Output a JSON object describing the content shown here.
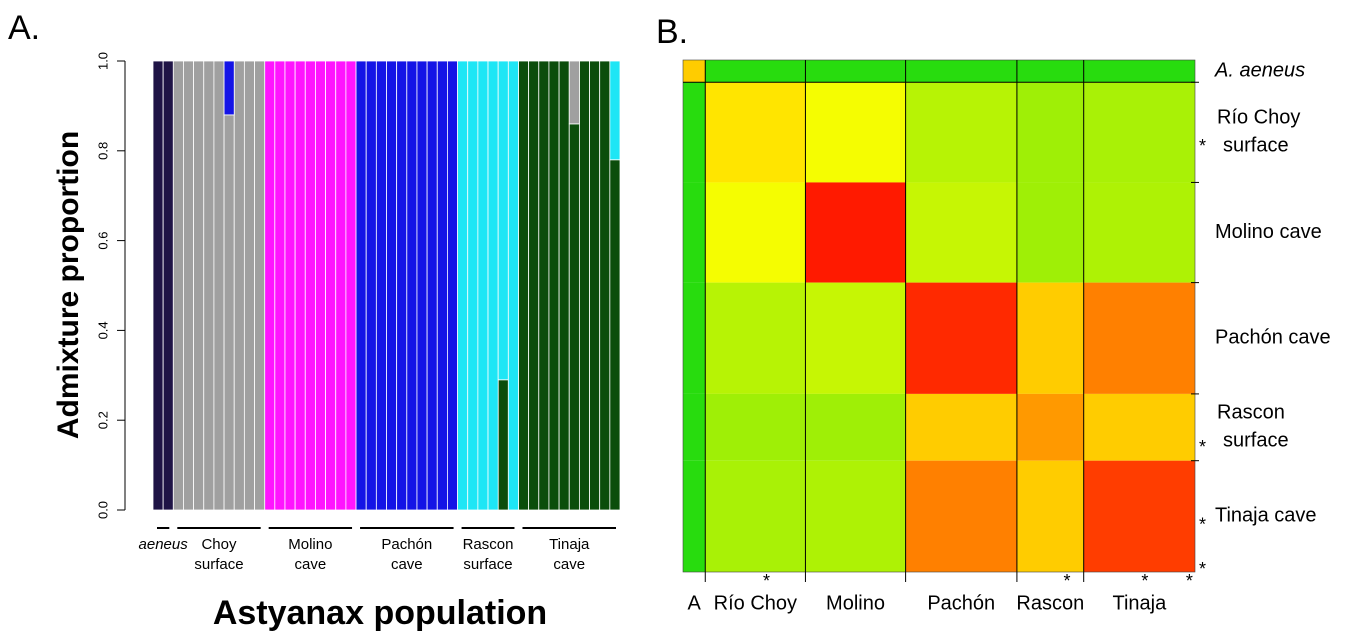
{
  "chart_data": [
    {
      "type": "bar",
      "stacked": true,
      "panel": "A.",
      "ylabel": "Admixture proportion",
      "xlabel": "Astyanax population",
      "categories": [
        null,
        null,
        null,
        null,
        null,
        null,
        null,
        null,
        null,
        null,
        null,
        null,
        null,
        null,
        null,
        null,
        null,
        null,
        null,
        null,
        null,
        null,
        null,
        null,
        null,
        null,
        null,
        null,
        null,
        null,
        null,
        null,
        null,
        null,
        null,
        null,
        null,
        null,
        null,
        null,
        null,
        null,
        null,
        null,
        null,
        null
      ],
      "groups": [
        {
          "label": "aeneus",
          "size": 2
        },
        {
          "label": "Choy surface",
          "size": 9
        },
        {
          "label": "Molino cave",
          "size": 9
        },
        {
          "label": "Pachón cave",
          "size": 10
        },
        {
          "label": "Rascon surface",
          "size": 6
        },
        {
          "label": "Tinaja cave",
          "size": 10
        }
      ],
      "ylim": [
        0,
        1
      ],
      "yticks": [
        {
          "value": 0,
          "label": "0.0"
        },
        0.2,
        0.4,
        0.6,
        0.8,
        {
          "value": 1,
          "label": "1.0"
        }
      ],
      "series": [
        {
          "color": "#1f1446",
          "values": [
            1,
            1,
            0,
            0,
            0,
            0,
            0,
            0,
            0,
            0,
            0,
            0,
            0,
            0,
            0,
            0,
            0,
            0,
            0,
            0,
            0,
            0,
            0,
            0,
            0,
            0,
            0,
            0,
            0,
            0,
            0,
            0,
            0,
            0,
            0,
            0,
            0,
            0,
            0,
            0,
            0,
            0,
            0,
            0,
            0,
            0
          ]
        },
        {
          "color": "#ff14ff",
          "values": [
            0,
            0,
            0,
            0,
            0,
            0,
            0,
            0,
            0,
            0,
            0,
            1,
            1,
            1,
            1,
            1,
            1,
            1,
            1,
            1,
            0,
            0,
            0,
            0,
            0,
            0,
            0,
            0,
            0,
            0,
            0,
            0,
            0,
            0,
            0,
            0,
            0,
            0,
            0,
            0,
            0,
            0,
            0,
            0,
            0,
            0
          ]
        },
        {
          "color": "#0b4d0b",
          "values": [
            0,
            0,
            0,
            0,
            0,
            0,
            0,
            0,
            0,
            0,
            0,
            0,
            0,
            0,
            0,
            0,
            0,
            0,
            0,
            0,
            0,
            0,
            0,
            0,
            0,
            0,
            0,
            0,
            0,
            0,
            0,
            0,
            0,
            0,
            0.29,
            0,
            1,
            1,
            1,
            1,
            1,
            0.86,
            1,
            1,
            1,
            0.78
          ]
        },
        {
          "color": "#a0a0a0",
          "values": [
            0,
            0,
            1,
            1,
            1,
            1,
            1,
            0.88,
            1,
            1,
            1,
            0,
            0,
            0,
            0,
            0,
            0,
            0,
            0,
            0,
            0,
            0,
            0,
            0,
            0,
            0,
            0,
            0,
            0,
            0,
            0,
            0,
            0,
            0,
            0,
            0,
            0,
            0,
            0,
            0,
            0,
            0.14,
            0,
            0,
            0,
            0
          ]
        },
        {
          "color": "#1414e6",
          "values": [
            0,
            0,
            0,
            0,
            0,
            0,
            0,
            0.12,
            0,
            0,
            0,
            0,
            0,
            0,
            0,
            0,
            0,
            0,
            0,
            0,
            1,
            1,
            1,
            1,
            1,
            1,
            1,
            1,
            1,
            1,
            0,
            0,
            0,
            0,
            0,
            0,
            0,
            0,
            0,
            0,
            0,
            0,
            0,
            0,
            0,
            0
          ]
        },
        {
          "color": "#1ee6f5",
          "values": [
            0,
            0,
            0,
            0,
            0,
            0,
            0,
            0,
            0,
            0,
            0,
            0,
            0,
            0,
            0,
            0,
            0,
            0,
            0,
            0,
            0,
            0,
            0,
            0,
            0,
            0,
            0,
            0,
            0,
            0,
            1,
            1,
            1,
            1,
            0.71,
            1,
            0,
            0,
            0,
            0,
            0,
            0,
            0,
            0,
            0,
            0.22
          ]
        }
      ]
    },
    {
      "type": "heatmap",
      "panel": "B.",
      "group_sizes": [
        2,
        9,
        9,
        10,
        6,
        10
      ],
      "col_labels": [
        "A",
        "Río Choy",
        "Molino",
        "Pachón",
        "Rascon",
        "Tinaja"
      ],
      "row_labels": [
        [
          "A. aeneus"
        ],
        [
          "Río Choy",
          "surface"
        ],
        [
          "Molino cave"
        ],
        [
          "Pachón cave"
        ],
        [
          "Rascon",
          "surface"
        ],
        [
          "Tinaja cave"
        ]
      ],
      "star": "*",
      "starred": [
        7,
        34,
        41,
        45
      ],
      "colors": [
        "#10d810",
        "#ffff00",
        "#ff0000"
      ],
      "values": [
        [
          0.6,
          0.05,
          0.05,
          0.05,
          0.05,
          0.05
        ],
        [
          0.05,
          0.55,
          0.48,
          0.35,
          0.3,
          0.32
        ],
        [
          0.05,
          0.48,
          0.95,
          0.38,
          0.3,
          0.33
        ],
        [
          0.05,
          0.35,
          0.38,
          0.92,
          0.6,
          0.75
        ],
        [
          0.05,
          0.3,
          0.3,
          0.6,
          0.7,
          0.6
        ],
        [
          0.05,
          0.32,
          0.33,
          0.75,
          0.6,
          0.88
        ]
      ]
    }
  ]
}
